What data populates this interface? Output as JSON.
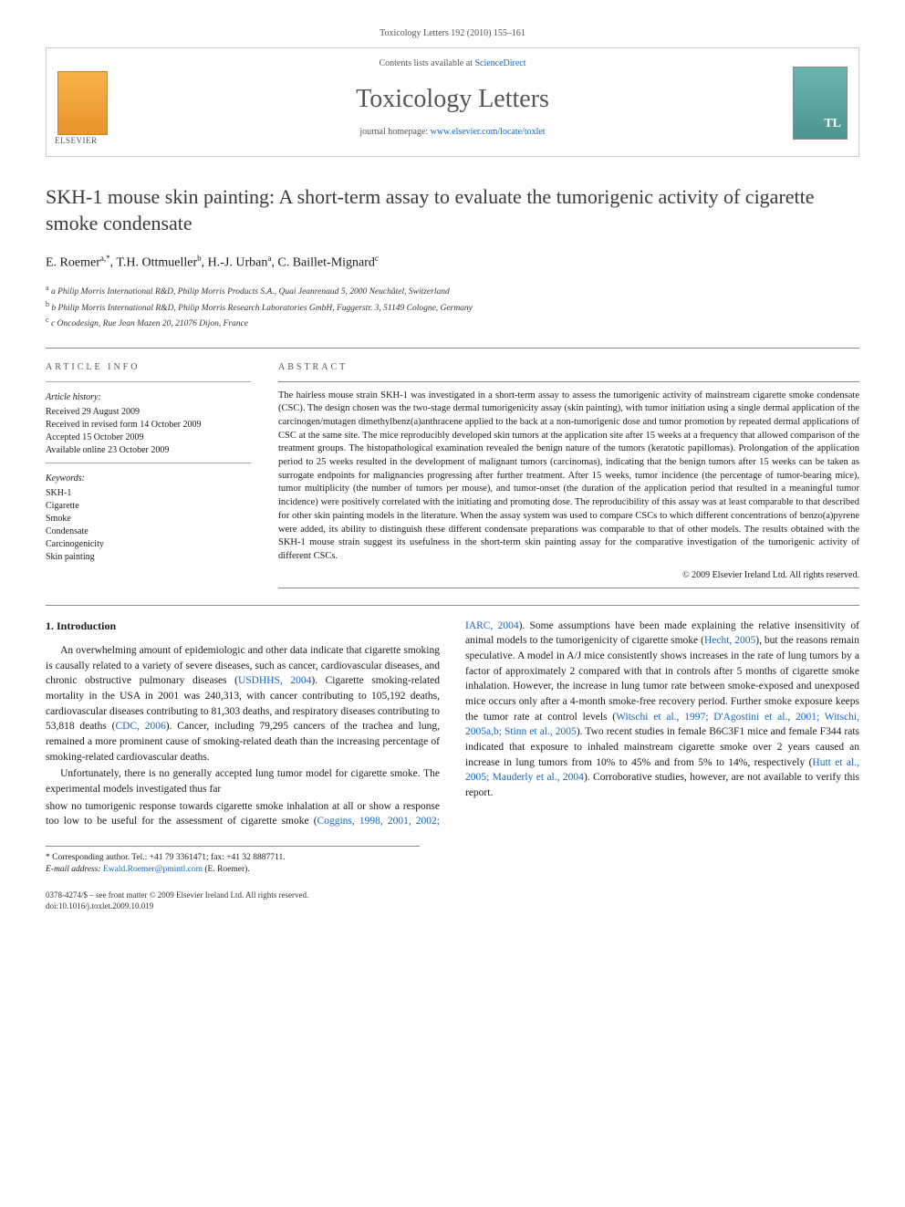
{
  "running_head": "Toxicology Letters 192 (2010) 155–161",
  "header": {
    "contents_prefix": "Contents lists available at ",
    "contents_link": "ScienceDirect",
    "journal": "Toxicology Letters",
    "homepage_prefix": "journal homepage: ",
    "homepage_url": "www.elsevier.com/locate/toxlet",
    "publisher_logo_alt": "Elsevier",
    "cover_alt": "Toxicology Letters cover"
  },
  "title": "SKH-1 mouse skin painting: A short-term assay to evaluate the tumorigenic activity of cigarette smoke condensate",
  "authors_html": "E. Roemer<sup>a,*</sup>, T.H. Ottmueller<sup>b</sup>, H.-J. Urban<sup>a</sup>, C. Baillet-Mignard<sup>c</sup>",
  "affiliations": [
    "a Philip Morris International R&D, Philip Morris Products S.A., Quai Jeanrenaud 5, 2000 Neuchâtel, Switzerland",
    "b Philip Morris International R&D, Philip Morris Research Laboratories GmbH, Fuggerstr. 3, 51149 Cologne, Germany",
    "c Oncodesign, Rue Jean Mazen 20, 21076 Dijon, France"
  ],
  "info": {
    "heading": "ARTICLE INFO",
    "history_label": "Article history:",
    "history": [
      "Received 29 August 2009",
      "Received in revised form 14 October 2009",
      "Accepted 15 October 2009",
      "Available online 23 October 2009"
    ],
    "keywords_label": "Keywords:",
    "keywords": [
      "SKH-1",
      "Cigarette",
      "Smoke",
      "Condensate",
      "Carcinogenicity",
      "Skin painting"
    ]
  },
  "abstract": {
    "heading": "ABSTRACT",
    "text": "The hairless mouse strain SKH-1 was investigated in a short-term assay to assess the tumorigenic activity of mainstream cigarette smoke condensate (CSC). The design chosen was the two-stage dermal tumorigenicity assay (skin painting), with tumor initiation using a single dermal application of the carcinogen/mutagen dimethylbenz(a)anthracene applied to the back at a non-tumorigenic dose and tumor promotion by repeated dermal applications of CSC at the same site. The mice reproducibly developed skin tumors at the application site after 15 weeks at a frequency that allowed comparison of the treatment groups. The histopathological examination revealed the benign nature of the tumors (keratotic papillomas). Prolongation of the application period to 25 weeks resulted in the development of malignant tumors (carcinomas), indicating that the benign tumors after 15 weeks can be taken as surrogate endpoints for malignancies progressing after further treatment. After 15 weeks, tumor incidence (the percentage of tumor-bearing mice), tumor multiplicity (the number of tumors per mouse), and tumor-onset (the duration of the application period that resulted in a meaningful tumor incidence) were positively correlated with the initiating and promoting dose. The reproducibility of this assay was at least comparable to that described for other skin painting models in the literature. When the assay system was used to compare CSCs to which different concentrations of benzo(a)pyrene were added, its ability to distinguish these different condensate preparations was comparable to that of other models. The results obtained with the SKH-1 mouse strain suggest its usefulness in the short-term skin painting assay for the comparative investigation of the tumorigenic activity of different CSCs.",
    "copyright": "© 2009 Elsevier Ireland Ltd. All rights reserved."
  },
  "section1": {
    "heading": "1.  Introduction",
    "p1_pre": "An overwhelming amount of epidemiologic and other data indicate that cigarette smoking is causally related to a variety of severe diseases, such as cancer, cardiovascular diseases, and chronic obstructive pulmonary diseases (",
    "p1_ref1": "USDHHS, 2004",
    "p1_mid1": "). Cigarette smoking-related mortality in the USA in 2001 was 240,313, with cancer contributing to 105,192 deaths, cardiovascular diseases contributing to 81,303 deaths, and respiratory diseases contributing to 53,818 deaths (",
    "p1_ref2": "CDC, 2006",
    "p1_post": "). Cancer, including 79,295 cancers of the trachea and lung, remained a more prominent cause of smoking-related death than the increasing percentage of smoking-related cardiovascular deaths.",
    "p2": "Unfortunately, there is no generally accepted lung tumor model for cigarette smoke. The experimental models investigated thus far",
    "p3_pre": "show no tumorigenic response towards cigarette smoke inhalation at all or show a response too low to be useful for the assessment of cigarette smoke (",
    "p3_ref1": "Coggins, 1998, 2001, 2002; IARC, 2004",
    "p3_mid1": "). Some assumptions have been made explaining the relative insensitivity of animal models to the tumorigenicity of cigarette smoke (",
    "p3_ref2": "Hecht, 2005",
    "p3_mid2": "), but the reasons remain speculative. A model in A/J mice consistently shows increases in the rate of lung tumors by a factor of approximately 2 compared with that in controls after 5 months of cigarette smoke inhalation. However, the increase in lung tumor rate between smoke-exposed and unexposed mice occurs only after a 4-month smoke-free recovery period. Further smoke exposure keeps the tumor rate at control levels (",
    "p3_ref3": "Witschi et al., 1997; D'Agostini et al., 2001; Witschi, 2005a,b; Stinn et al., 2005",
    "p3_mid3": "). Two recent studies in female B6C3F1 mice and female F344 rats indicated that exposure to inhaled mainstream cigarette smoke over 2 years caused an increase in lung tumors from 10% to 45% and from 5% to 14%, respectively (",
    "p3_ref4": "Hutt et al., 2005; Mauderly et al., 2004",
    "p3_post": "). Corroborative studies, however, are not available to verify this report."
  },
  "footnotes": {
    "corr": "* Corresponding author. Tel.: +41 79 3361471; fax: +41 32 8887711.",
    "email_label": "E-mail address: ",
    "email": "Ewald.Roemer@pmintl.com",
    "email_suffix": " (E. Roemer)."
  },
  "footer": {
    "line1": "0378-4274/$ – see front matter © 2009 Elsevier Ireland Ltd. All rights reserved.",
    "line2": "doi:10.1016/j.toxlet.2009.10.019"
  },
  "colors": {
    "link": "#1565c0",
    "text": "#1a1a1a",
    "heading_gray": "#555555",
    "rule": "#888888"
  }
}
